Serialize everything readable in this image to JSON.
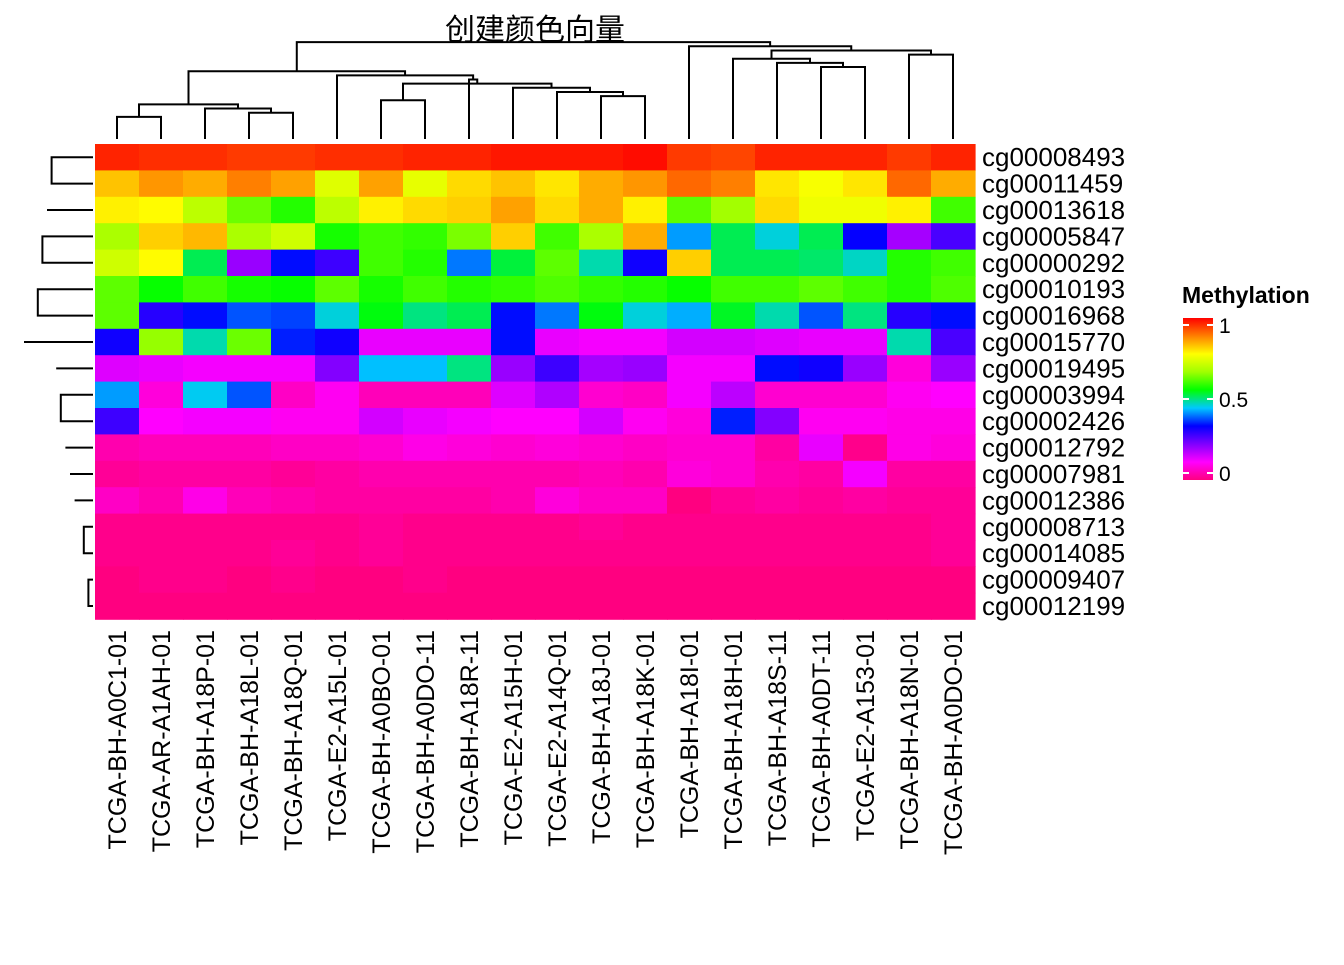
{
  "chart_data": {
    "type": "heatmap",
    "title": "创建颜色向量",
    "legend": {
      "title": "Methylation",
      "ticks": [
        1,
        0.5,
        0
      ],
      "tick_labels": [
        "1",
        "0.5",
        "0"
      ],
      "range": [
        0,
        1
      ],
      "placement": "right"
    },
    "color_scale": [
      "#ff0080",
      "#ff00ff",
      "#8000ff",
      "#0000ff",
      "#00c8ff",
      "#00ff00",
      "#a0ff00",
      "#ffff00",
      "#ff8000",
      "#ff0000"
    ],
    "columns": [
      "TCGA-BH-A0C1-01",
      "TCGA-AR-A1AH-01",
      "TCGA-BH-A18P-01",
      "TCGA-BH-A18L-01",
      "TCGA-BH-A18Q-01",
      "TCGA-E2-A15L-01",
      "TCGA-BH-A0BO-01",
      "TCGA-BH-A0DO-11",
      "TCGA-BH-A18R-11",
      "TCGA-E2-A15H-01",
      "TCGA-E2-A14Q-01",
      "TCGA-BH-A18J-01",
      "TCGA-BH-A18K-01",
      "TCGA-BH-A18I-01",
      "TCGA-BH-A18H-01",
      "TCGA-BH-A18S-11",
      "TCGA-BH-A0DT-11",
      "TCGA-E2-A153-01",
      "TCGA-BH-A18N-01",
      "TCGA-BH-A0DO-01"
    ],
    "rows": [
      "cg00008493",
      "cg00011459",
      "cg00013618",
      "cg00005847",
      "cg00000292",
      "cg00010193",
      "cg00016968",
      "cg00015770",
      "cg00019495",
      "cg00003994",
      "cg00002426",
      "cg00012792",
      "cg00007981",
      "cg00012386",
      "cg00008713",
      "cg00014085",
      "cg00009407",
      "cg00012199"
    ],
    "values": [
      [
        0.97,
        0.96,
        0.96,
        0.95,
        0.95,
        0.96,
        0.96,
        0.97,
        0.97,
        0.98,
        0.98,
        0.98,
        0.99,
        0.95,
        0.94,
        0.97,
        0.97,
        0.97,
        0.95,
        0.97
      ],
      [
        0.83,
        0.87,
        0.85,
        0.89,
        0.86,
        0.74,
        0.86,
        0.75,
        0.81,
        0.83,
        0.8,
        0.85,
        0.87,
        0.91,
        0.89,
        0.8,
        0.77,
        0.8,
        0.91,
        0.85
      ],
      [
        0.79,
        0.78,
        0.7,
        0.63,
        0.58,
        0.7,
        0.79,
        0.81,
        0.82,
        0.86,
        0.81,
        0.85,
        0.79,
        0.62,
        0.67,
        0.81,
        0.76,
        0.76,
        0.79,
        0.6
      ],
      [
        0.68,
        0.82,
        0.84,
        0.68,
        0.72,
        0.57,
        0.6,
        0.59,
        0.64,
        0.82,
        0.6,
        0.68,
        0.85,
        0.42,
        0.52,
        0.46,
        0.52,
        0.33,
        0.19,
        0.27
      ],
      [
        0.72,
        0.78,
        0.52,
        0.2,
        0.34,
        0.28,
        0.6,
        0.58,
        0.4,
        0.53,
        0.62,
        0.48,
        0.32,
        0.82,
        0.52,
        0.52,
        0.51,
        0.47,
        0.58,
        0.6
      ],
      [
        0.62,
        0.56,
        0.6,
        0.57,
        0.56,
        0.62,
        0.57,
        0.6,
        0.58,
        0.59,
        0.61,
        0.59,
        0.58,
        0.56,
        0.6,
        0.6,
        0.62,
        0.6,
        0.58,
        0.61
      ],
      [
        0.62,
        0.3,
        0.34,
        0.38,
        0.37,
        0.46,
        0.55,
        0.5,
        0.52,
        0.34,
        0.4,
        0.55,
        0.46,
        0.43,
        0.54,
        0.48,
        0.38,
        0.5,
        0.3,
        0.34
      ],
      [
        0.32,
        0.66,
        0.48,
        0.63,
        0.35,
        0.32,
        0.13,
        0.13,
        0.13,
        0.34,
        0.13,
        0.12,
        0.12,
        0.15,
        0.15,
        0.14,
        0.13,
        0.13,
        0.48,
        0.27
      ],
      [
        0.14,
        0.13,
        0.12,
        0.12,
        0.12,
        0.22,
        0.44,
        0.44,
        0.5,
        0.2,
        0.28,
        0.19,
        0.2,
        0.12,
        0.12,
        0.34,
        0.32,
        0.2,
        0.08,
        0.2
      ],
      [
        0.42,
        0.08,
        0.45,
        0.38,
        0.06,
        0.1,
        0.05,
        0.05,
        0.05,
        0.14,
        0.18,
        0.07,
        0.06,
        0.12,
        0.17,
        0.07,
        0.07,
        0.07,
        0.1,
        0.11
      ],
      [
        0.28,
        0.11,
        0.12,
        0.12,
        0.1,
        0.1,
        0.15,
        0.13,
        0.12,
        0.11,
        0.11,
        0.15,
        0.1,
        0.08,
        0.35,
        0.22,
        0.1,
        0.1,
        0.09,
        0.09
      ],
      [
        0.04,
        0.05,
        0.05,
        0.05,
        0.06,
        0.06,
        0.07,
        0.09,
        0.08,
        0.07,
        0.08,
        0.07,
        0.06,
        0.07,
        0.07,
        0.03,
        0.13,
        0.01,
        0.09,
        0.08
      ],
      [
        0.02,
        0.03,
        0.03,
        0.03,
        0.02,
        0.03,
        0.04,
        0.04,
        0.04,
        0.04,
        0.04,
        0.05,
        0.04,
        0.08,
        0.07,
        0.04,
        0.03,
        0.12,
        0.03,
        0.03
      ],
      [
        0.06,
        0.04,
        0.09,
        0.05,
        0.04,
        0.03,
        0.03,
        0.03,
        0.03,
        0.04,
        0.08,
        0.06,
        0.06,
        0.0,
        0.02,
        0.03,
        0.02,
        0.03,
        0.02,
        0.02
      ],
      [
        0.01,
        0.01,
        0.01,
        0.01,
        0.01,
        0.01,
        0.02,
        0.01,
        0.01,
        0.01,
        0.01,
        0.02,
        0.01,
        0.01,
        0.01,
        0.01,
        0.01,
        0.01,
        0.01,
        0.02
      ],
      [
        0.01,
        0.01,
        0.01,
        0.01,
        0.02,
        0.01,
        0.02,
        0.01,
        0.01,
        0.01,
        0.01,
        0.01,
        0.01,
        0.01,
        0.01,
        0.01,
        0.01,
        0.01,
        0.01,
        0.02
      ],
      [
        0.0,
        0.01,
        0.01,
        0.0,
        0.01,
        0.0,
        0.0,
        0.01,
        0.0,
        0.0,
        0.0,
        0.0,
        0.0,
        0.0,
        0.0,
        0.0,
        0.0,
        0.0,
        0.0,
        0.0
      ],
      [
        0.0,
        0.0,
        0.0,
        0.0,
        0.0,
        0.0,
        0.0,
        0.0,
        0.0,
        0.0,
        0.0,
        0.0,
        0.0,
        0.0,
        0.0,
        0.0,
        0.0,
        0.0,
        0.0,
        0.0
      ]
    ],
    "column_dendrogram": [
      [
        0,
        1
      ],
      [
        3,
        4
      ],
      [
        2,
        21
      ],
      [
        20,
        22
      ],
      [
        6,
        7
      ],
      [
        11,
        12
      ],
      [
        10,
        25
      ],
      [
        9,
        26
      ],
      [
        24,
        27
      ],
      [
        8,
        28
      ],
      [
        5,
        29
      ],
      [
        23,
        30
      ],
      [
        16,
        17
      ],
      [
        15,
        32
      ],
      [
        33,
        14
      ],
      [
        18,
        19
      ],
      [
        34,
        35
      ],
      [
        13,
        36
      ],
      [
        31,
        37
      ]
    ],
    "row_dendrogram": [
      [
        16,
        17
      ],
      [
        14,
        15
      ],
      [
        38,
        36
      ],
      [
        13,
        37
      ],
      [
        12,
        39
      ],
      [
        11,
        40
      ],
      [
        9,
        10
      ],
      [
        8,
        42
      ],
      [
        0,
        1
      ],
      [
        2,
        44
      ],
      [
        3,
        4
      ],
      [
        5,
        6
      ],
      [
        47,
        46
      ],
      [
        45,
        48
      ],
      [
        7,
        43
      ],
      [
        41,
        50
      ],
      [
        49,
        51
      ]
    ],
    "grid": false
  }
}
